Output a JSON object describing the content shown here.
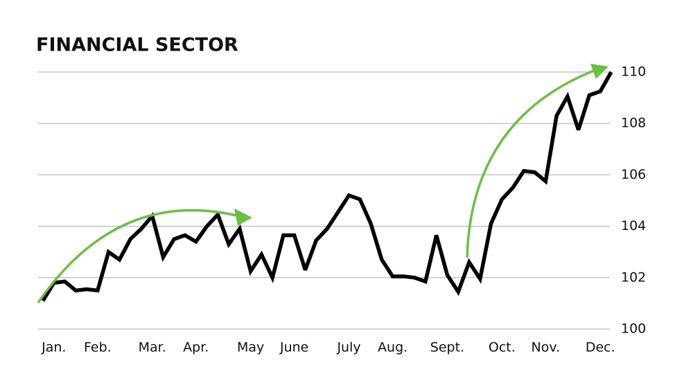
{
  "chart_data": {
    "type": "line",
    "title": "FINANCIAL SECTOR",
    "categories": [
      null,
      "Jan.",
      null,
      null,
      null,
      "Feb.",
      null,
      null,
      null,
      null,
      "Mar.",
      null,
      null,
      null,
      "Apr.",
      null,
      null,
      null,
      null,
      "May",
      null,
      null,
      null,
      "June",
      null,
      null,
      null,
      null,
      "July",
      null,
      null,
      null,
      "Aug.",
      null,
      null,
      null,
      null,
      "Sept.",
      null,
      null,
      null,
      null,
      "Oct.",
      null,
      null,
      null,
      "Nov.",
      null,
      null,
      null,
      null,
      "Dec.",
      null
    ],
    "series": [
      {
        "color": "#000000",
        "values": [
          101.1,
          101.8,
          101.85,
          101.5,
          101.55,
          101.5,
          103.0,
          102.7,
          103.5,
          103.9,
          104.4,
          102.8,
          103.5,
          103.65,
          103.4,
          104.0,
          104.45,
          103.3,
          103.9,
          102.25,
          102.9,
          102.0,
          103.65,
          103.65,
          102.3,
          103.45,
          103.9,
          104.55,
          105.2,
          105.05,
          104.1,
          102.7,
          102.05,
          102.05,
          102.0,
          101.85,
          103.65,
          102.1,
          101.45,
          102.6,
          101.95,
          104.1,
          105.05,
          105.5,
          106.15,
          106.1,
          105.75,
          108.3,
          109.05,
          107.75,
          109.1,
          109.25,
          110.0
        ]
      }
    ],
    "ylim": [
      100,
      110
    ],
    "yticks": [
      100,
      102,
      104,
      106,
      108,
      110
    ],
    "grid": true
  }
}
